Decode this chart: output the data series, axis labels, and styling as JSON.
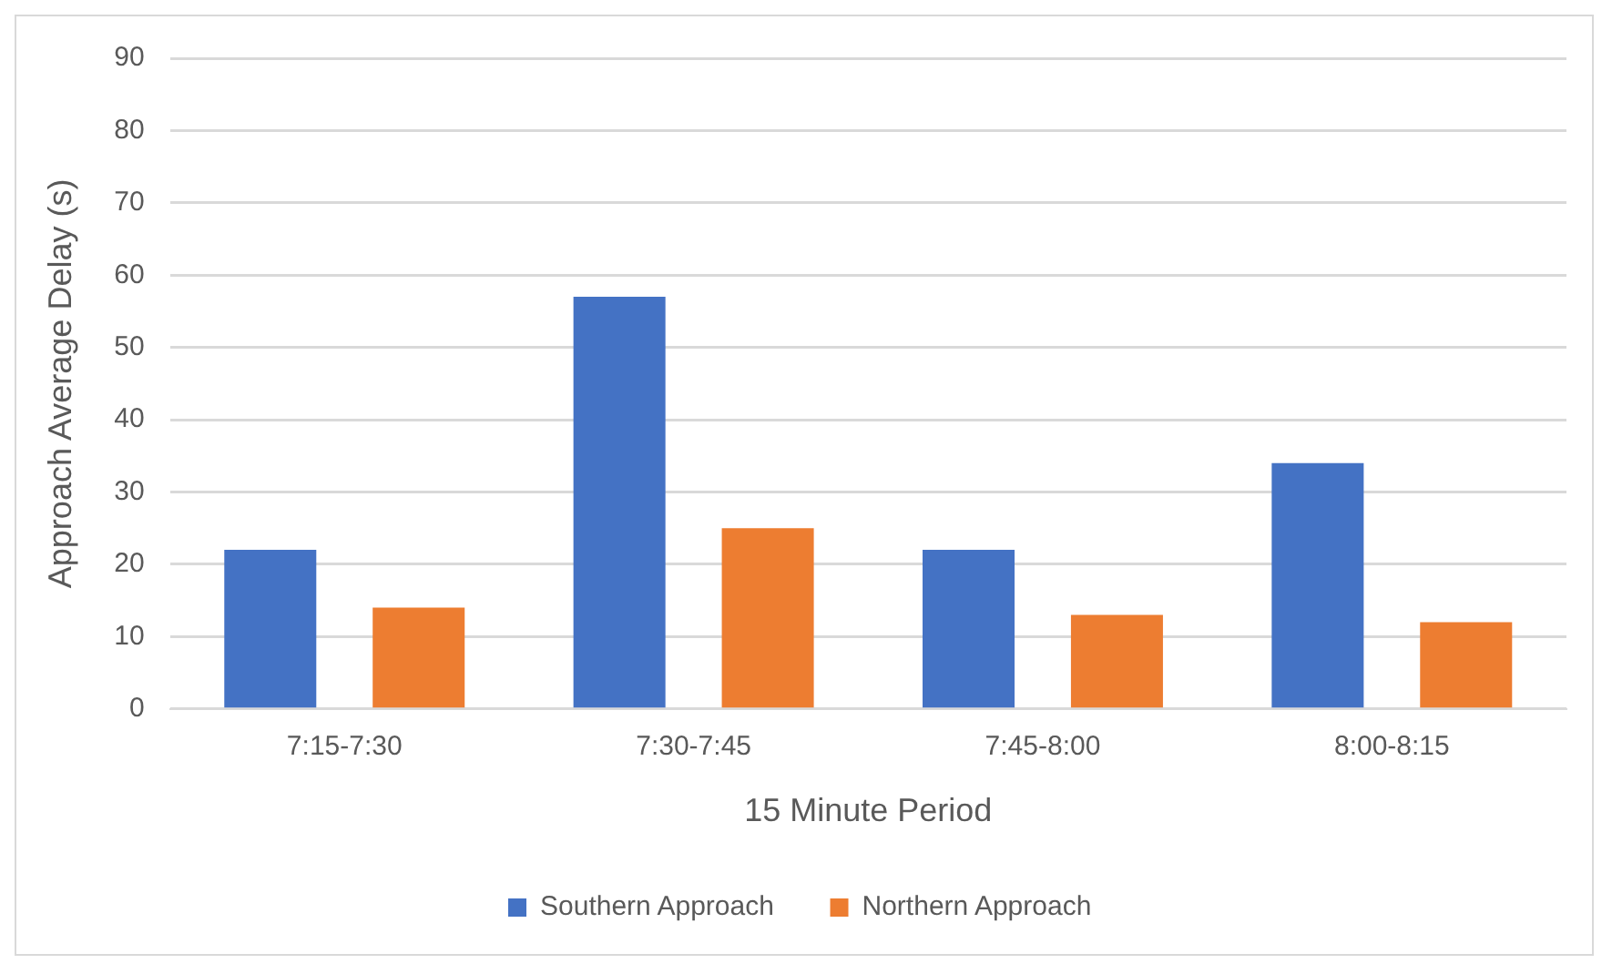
{
  "chart_data": {
    "type": "bar",
    "xlabel": "15 Minute Period",
    "ylabel": "Approach Average Delay (s)",
    "categories": [
      "7:15-7:30",
      "7:30-7:45",
      "7:45-8:00",
      "8:00-8:15"
    ],
    "series": [
      {
        "name": "Southern Approach",
        "color": "#4472c4",
        "values": [
          22,
          57,
          22,
          34
        ]
      },
      {
        "name": "Northern Approach",
        "color": "#ed7d31",
        "values": [
          14,
          25,
          13,
          12
        ]
      }
    ],
    "ylim": [
      0,
      90
    ],
    "yticks": [
      0,
      10,
      20,
      30,
      40,
      50,
      60,
      70,
      80,
      90
    ],
    "grid": "y",
    "legend": "bottom"
  }
}
